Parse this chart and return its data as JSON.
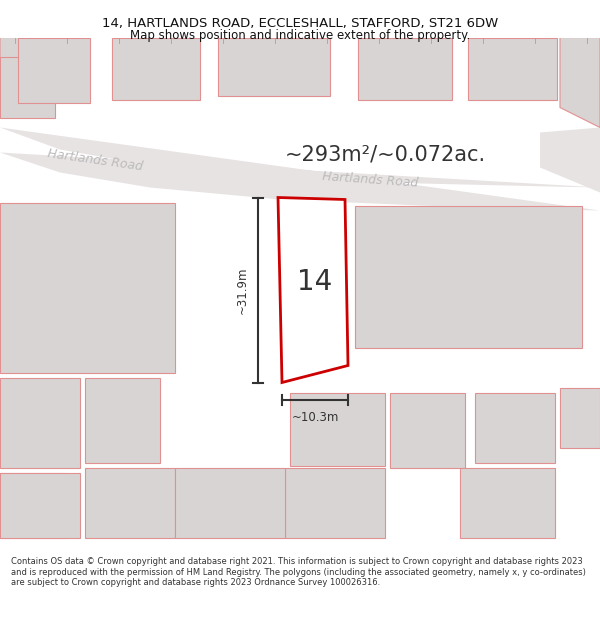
{
  "title_line1": "14, HARTLANDS ROAD, ECCLESHALL, STAFFORD, ST21 6DW",
  "title_line2": "Map shows position and indicative extent of the property.",
  "footer_text": "Contains OS data © Crown copyright and database right 2021. This information is subject to Crown copyright and database rights 2023 and is reproduced with the permission of HM Land Registry. The polygons (including the associated geometry, namely x, y co-ordinates) are subject to Crown copyright and database rights 2023 Ordnance Survey 100026316.",
  "area_label": "~293m²/~0.072ac.",
  "road_label1": "Hartlands Road",
  "road_label2": "Hartlands Road",
  "plot_label": "14",
  "width_label": "~10.3m",
  "height_label": "~31.9m",
  "map_bg": "#f2eeee",
  "road_fill": "#e8e3e3",
  "building_fill": "#d9d4d4",
  "building_stroke": "#e09090",
  "plot_stroke": "#cc0000",
  "plot_fill": "#ffffff",
  "road_label_color": "#bbbbbb",
  "dim_color": "#333333",
  "title_color": "#111111",
  "footer_color": "#333333",
  "area_label_color": "#333333"
}
